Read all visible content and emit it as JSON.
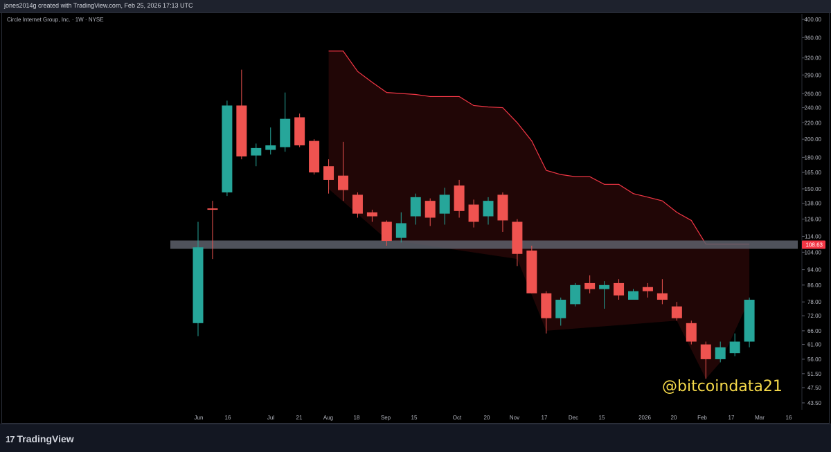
{
  "header": {
    "created_by": "jones2014g created with TradingView.com, Feb 25, 2026 17:13 UTC"
  },
  "symbol_legend": "Circle Internet Group, Inc. · 1W · NYSE",
  "footer": {
    "logo_text": "TradingView",
    "logo_mark": "17"
  },
  "watermark": "@bitcoindata21",
  "colors": {
    "up": "#26a69a",
    "down": "#ef5350",
    "resistance_line": "#f23645",
    "resistance_fill": "rgba(120, 20, 20, 0.28)",
    "support_band": "#5d606b",
    "price_label_bg": "#f23645"
  },
  "chart_data": {
    "type": "candlestick",
    "scale": "log",
    "ylim": [
      43.5,
      400
    ],
    "price_ticks": [
      "400.00",
      "360.00",
      "320.00",
      "290.00",
      "260.00",
      "240.00",
      "220.00",
      "200.00",
      "180.00",
      "165.00",
      "150.00",
      "138.00",
      "126.00",
      "114.00",
      "104.00",
      "94.00",
      "86.00",
      "78.00",
      "72.00",
      "66.00",
      "61.00",
      "56.00",
      "51.50",
      "47.50",
      "43.50"
    ],
    "time_ticks": [
      "Jun",
      "16",
      "Jul",
      "21",
      "Aug",
      "18",
      "Sep",
      "15",
      "Oct",
      "20",
      "Nov",
      "17",
      "Dec",
      "15",
      "2026",
      "20",
      "Feb",
      "17",
      "Mar",
      "16"
    ],
    "current_price_label": "108.63",
    "support_level": 108.63,
    "candles": [
      {
        "o": 69,
        "h": 124,
        "l": 64,
        "c": 107
      },
      {
        "o": 134,
        "h": 140,
        "l": 100,
        "c": 133
      },
      {
        "o": 147,
        "h": 250,
        "l": 144,
        "c": 243
      },
      {
        "o": 243,
        "h": 299,
        "l": 178,
        "c": 181
      },
      {
        "o": 182,
        "h": 195,
        "l": 171,
        "c": 190
      },
      {
        "o": 188,
        "h": 214,
        "l": 183,
        "c": 193
      },
      {
        "o": 191,
        "h": 262,
        "l": 186,
        "c": 225
      },
      {
        "o": 227,
        "h": 232,
        "l": 191,
        "c": 193
      },
      {
        "o": 198,
        "h": 200,
        "l": 163,
        "c": 165
      },
      {
        "o": 171,
        "h": 178,
        "l": 146,
        "c": 158
      },
      {
        "o": 162,
        "h": 197,
        "l": 140,
        "c": 149
      },
      {
        "o": 145,
        "h": 147,
        "l": 127,
        "c": 130
      },
      {
        "o": 131,
        "h": 133,
        "l": 124,
        "c": 128
      },
      {
        "o": 124,
        "h": 125,
        "l": 108,
        "c": 111
      },
      {
        "o": 113,
        "h": 131,
        "l": 110,
        "c": 123
      },
      {
        "o": 128,
        "h": 146,
        "l": 122,
        "c": 143
      },
      {
        "o": 140,
        "h": 142,
        "l": 121,
        "c": 127
      },
      {
        "o": 130,
        "h": 151,
        "l": 122,
        "c": 145
      },
      {
        "o": 153,
        "h": 158,
        "l": 127,
        "c": 132
      },
      {
        "o": 137,
        "h": 141,
        "l": 120,
        "c": 124
      },
      {
        "o": 128,
        "h": 143,
        "l": 122,
        "c": 140
      },
      {
        "o": 145,
        "h": 147,
        "l": 117,
        "c": 125
      },
      {
        "o": 124,
        "h": 126,
        "l": 96,
        "c": 103
      },
      {
        "o": 105,
        "h": 108,
        "l": 82,
        "c": 82
      },
      {
        "o": 82,
        "h": 83,
        "l": 65,
        "c": 71
      },
      {
        "o": 71,
        "h": 80,
        "l": 68,
        "c": 79
      },
      {
        "o": 77,
        "h": 87,
        "l": 76,
        "c": 86
      },
      {
        "o": 87,
        "h": 91,
        "l": 82,
        "c": 84
      },
      {
        "o": 84,
        "h": 88,
        "l": 75,
        "c": 86
      },
      {
        "o": 87,
        "h": 89,
        "l": 79,
        "c": 81
      },
      {
        "o": 79,
        "h": 84,
        "l": 79,
        "c": 83
      },
      {
        "o": 85,
        "h": 87,
        "l": 80,
        "c": 83
      },
      {
        "o": 82,
        "h": 89,
        "l": 77,
        "c": 79
      },
      {
        "o": 76,
        "h": 78,
        "l": 70,
        "c": 71
      },
      {
        "o": 69,
        "h": 70,
        "l": 61,
        "c": 62
      },
      {
        "o": 61,
        "h": 62,
        "l": 50,
        "c": 56
      },
      {
        "o": 56,
        "h": 62,
        "l": 55,
        "c": 60
      },
      {
        "o": 58,
        "h": 65,
        "l": 57,
        "c": 62
      },
      {
        "o": 62,
        "h": 80,
        "l": 60,
        "c": 79
      }
    ],
    "resistance_line": [
      {
        "i": 9,
        "v": 333
      },
      {
        "i": 10,
        "v": 333
      },
      {
        "i": 11,
        "v": 296
      },
      {
        "i": 12,
        "v": 278
      },
      {
        "i": 13,
        "v": 262
      },
      {
        "i": 15,
        "v": 259
      },
      {
        "i": 16,
        "v": 256
      },
      {
        "i": 18,
        "v": 256
      },
      {
        "i": 19,
        "v": 243
      },
      {
        "i": 20,
        "v": 241
      },
      {
        "i": 21,
        "v": 240
      },
      {
        "i": 22,
        "v": 220
      },
      {
        "i": 23,
        "v": 198
      },
      {
        "i": 24,
        "v": 167
      },
      {
        "i": 25,
        "v": 163
      },
      {
        "i": 26,
        "v": 161
      },
      {
        "i": 27,
        "v": 161
      },
      {
        "i": 28,
        "v": 154
      },
      {
        "i": 29,
        "v": 154
      },
      {
        "i": 30,
        "v": 146
      },
      {
        "i": 31,
        "v": 143
      },
      {
        "i": 32,
        "v": 140
      },
      {
        "i": 33,
        "v": 131
      },
      {
        "i": 34,
        "v": 125
      },
      {
        "i": 35,
        "v": 109
      },
      {
        "i": 36,
        "v": 109
      },
      {
        "i": 37,
        "v": 109
      },
      {
        "i": 38,
        "v": 109
      }
    ]
  }
}
